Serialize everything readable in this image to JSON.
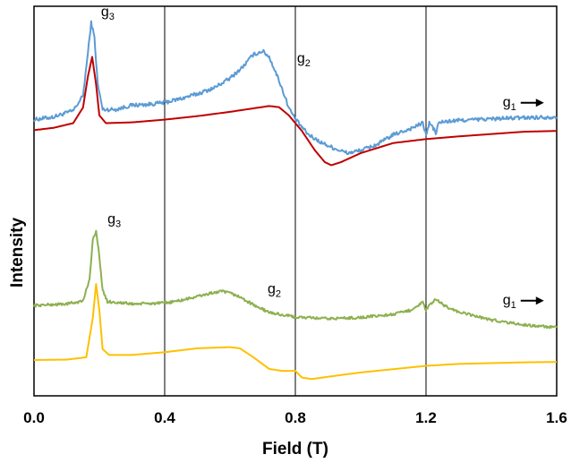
{
  "chart_data": {
    "type": "line",
    "xlabel": "Field (T)",
    "ylabel": "Intensity",
    "xlim": [
      0.0,
      1.6
    ],
    "ylim": [
      0,
      100
    ],
    "x_ticks": [
      "0.0",
      "0.4",
      "0.8",
      "1.2",
      "1.6"
    ],
    "vertical_lines": [
      0.4,
      0.8,
      1.2
    ],
    "grid": false,
    "legend": "none",
    "series": [
      {
        "color": "#5b9bd5",
        "noise": 0.5,
        "points": [
          [
            0.0,
            70.9
          ],
          [
            0.06,
            71.6
          ],
          [
            0.12,
            73.2
          ],
          [
            0.15,
            77
          ],
          [
            0.165,
            88
          ],
          [
            0.175,
            95.8
          ],
          [
            0.185,
            92
          ],
          [
            0.195,
            80
          ],
          [
            0.21,
            73.5
          ],
          [
            0.25,
            73.5
          ],
          [
            0.3,
            74.6
          ],
          [
            0.35,
            74.8
          ],
          [
            0.4,
            75.3
          ],
          [
            0.45,
            76.3
          ],
          [
            0.5,
            77.5
          ],
          [
            0.55,
            79
          ],
          [
            0.6,
            81.5
          ],
          [
            0.64,
            84.5
          ],
          [
            0.67,
            87.5
          ],
          [
            0.7,
            88.5
          ],
          [
            0.72,
            87
          ],
          [
            0.75,
            81
          ],
          [
            0.78,
            74
          ],
          [
            0.8,
            71
          ],
          [
            0.84,
            67
          ],
          [
            0.88,
            65
          ],
          [
            0.92,
            63.5
          ],
          [
            0.96,
            62.3
          ],
          [
            1.0,
            63
          ],
          [
            1.05,
            64.5
          ],
          [
            1.1,
            67
          ],
          [
            1.15,
            68.5
          ],
          [
            1.19,
            70
          ],
          [
            1.2,
            67
          ],
          [
            1.21,
            70
          ],
          [
            1.22,
            69
          ],
          [
            1.23,
            67.5
          ],
          [
            1.24,
            70.2
          ],
          [
            1.3,
            70.7
          ],
          [
            1.4,
            71.1
          ],
          [
            1.5,
            71.4
          ],
          [
            1.6,
            71.6
          ]
        ]
      },
      {
        "color": "#c00000",
        "noise": 0,
        "points": [
          [
            0.0,
            68.2
          ],
          [
            0.06,
            68.8
          ],
          [
            0.12,
            70
          ],
          [
            0.15,
            74
          ],
          [
            0.165,
            82
          ],
          [
            0.178,
            87
          ],
          [
            0.19,
            80
          ],
          [
            0.2,
            72
          ],
          [
            0.22,
            70
          ],
          [
            0.3,
            70.2
          ],
          [
            0.4,
            70.9
          ],
          [
            0.5,
            71.8
          ],
          [
            0.6,
            72.9
          ],
          [
            0.68,
            73.9
          ],
          [
            0.72,
            74.4
          ],
          [
            0.75,
            74.1
          ],
          [
            0.78,
            72
          ],
          [
            0.82,
            68
          ],
          [
            0.86,
            63
          ],
          [
            0.89,
            60
          ],
          [
            0.91,
            59.2
          ],
          [
            0.94,
            60
          ],
          [
            1.0,
            62.3
          ],
          [
            1.1,
            64.9
          ],
          [
            1.2,
            65.9
          ],
          [
            1.3,
            66.6
          ],
          [
            1.4,
            67.2
          ],
          [
            1.5,
            67.8
          ],
          [
            1.6,
            68
          ]
        ]
      },
      {
        "color": "#8db04f",
        "noise": 0.35,
        "points": [
          [
            0.0,
            23.2
          ],
          [
            0.1,
            23.6
          ],
          [
            0.15,
            24.3
          ],
          [
            0.17,
            30
          ],
          [
            0.18,
            40
          ],
          [
            0.19,
            42.2
          ],
          [
            0.2,
            36
          ],
          [
            0.21,
            27
          ],
          [
            0.225,
            24.2
          ],
          [
            0.3,
            23.6
          ],
          [
            0.4,
            23.8
          ],
          [
            0.45,
            24.5
          ],
          [
            0.5,
            25.5
          ],
          [
            0.55,
            26.5
          ],
          [
            0.58,
            26.8
          ],
          [
            0.62,
            25.8
          ],
          [
            0.68,
            23
          ],
          [
            0.72,
            21.4
          ],
          [
            0.8,
            20.2
          ],
          [
            0.9,
            19.8
          ],
          [
            1.0,
            20.1
          ],
          [
            1.1,
            20.9
          ],
          [
            1.15,
            21.9
          ],
          [
            1.19,
            24
          ],
          [
            1.2,
            21.9
          ],
          [
            1.21,
            23.2
          ],
          [
            1.23,
            24.7
          ],
          [
            1.26,
            23
          ],
          [
            1.3,
            21.5
          ],
          [
            1.4,
            19.5
          ],
          [
            1.5,
            18.2
          ],
          [
            1.6,
            17.5
          ]
        ]
      },
      {
        "color": "#ffc000",
        "noise": 0,
        "points": [
          [
            0.0,
            9.2
          ],
          [
            0.1,
            9.3
          ],
          [
            0.16,
            9.9
          ],
          [
            0.18,
            20
          ],
          [
            0.19,
            28.7
          ],
          [
            0.2,
            22
          ],
          [
            0.21,
            12
          ],
          [
            0.23,
            10.5
          ],
          [
            0.3,
            10.5
          ],
          [
            0.4,
            11.2
          ],
          [
            0.5,
            12.2
          ],
          [
            0.6,
            12.5
          ],
          [
            0.63,
            12.2
          ],
          [
            0.67,
            10
          ],
          [
            0.72,
            6.9
          ],
          [
            0.76,
            6.4
          ],
          [
            0.8,
            6.4
          ],
          [
            0.82,
            4.7
          ],
          [
            0.85,
            4.3
          ],
          [
            0.9,
            4.9
          ],
          [
            1.0,
            6
          ],
          [
            1.2,
            7.7
          ],
          [
            1.3,
            8.2
          ],
          [
            1.4,
            8.4
          ],
          [
            1.5,
            8.6
          ],
          [
            1.6,
            8.7
          ]
        ]
      }
    ],
    "annotations": [
      {
        "base": "g",
        "sub": "3",
        "x": 0.205,
        "y": 97.5
      },
      {
        "base": "g",
        "sub": "2",
        "x": 0.805,
        "y": 85.5
      },
      {
        "base": "g",
        "sub": "1",
        "x": 1.435,
        "y": 74.3,
        "arrow": true
      },
      {
        "base": "g",
        "sub": "3",
        "x": 0.225,
        "y": 44.3
      },
      {
        "base": "g",
        "sub": "2",
        "x": 0.715,
        "y": 26.3
      },
      {
        "base": "g",
        "sub": "1",
        "x": 1.435,
        "y": 23.5,
        "arrow": true
      }
    ]
  }
}
